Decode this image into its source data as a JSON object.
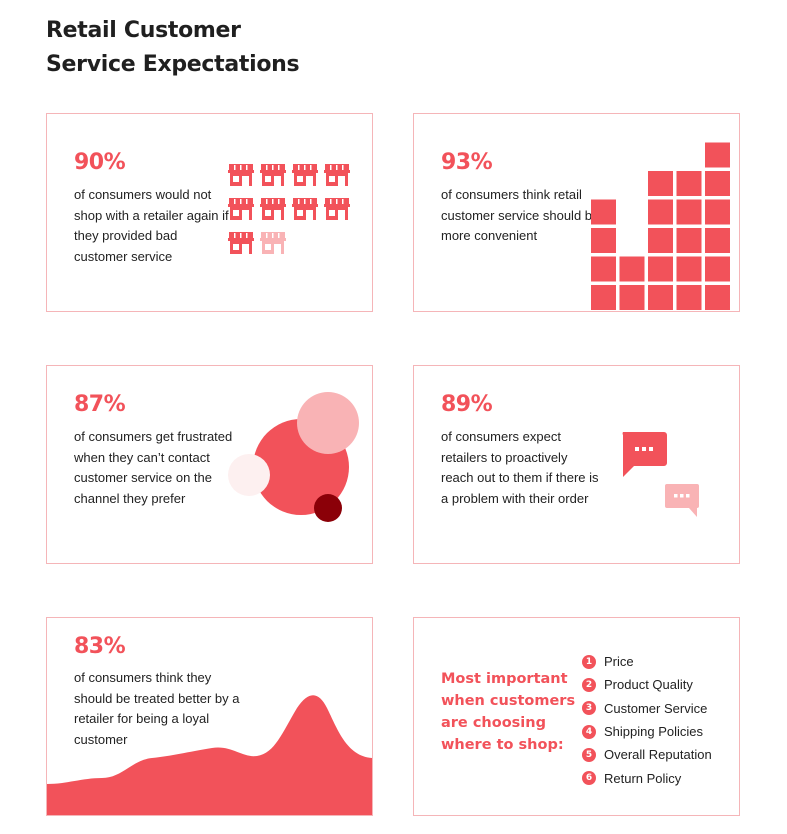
{
  "title_line1": "Retail Customer",
  "title_line2": "Service Expectations",
  "colors": {
    "accent": "#f2525a",
    "light": "#f9b3b5",
    "dark": "#8b0008",
    "pale": "#fdf0f0",
    "border": "#f5b5b8"
  },
  "card1": {
    "percent": "90%",
    "text": "of consumers would not shop with a retailer again if they provided bad customer service",
    "icon": "store-icon",
    "stores_total": 10,
    "stores_highlighted": 9
  },
  "card2": {
    "percent": "93%",
    "text": "of consumers think retail customer service should be more convenient",
    "icon": "bar-blocks-icon"
  },
  "card3": {
    "percent": "87%",
    "text": "of consumers get frustrated when they can’t contact customer service on the channel they prefer",
    "icon": "circles-icon"
  },
  "card4": {
    "percent": "89%",
    "text": "of consumers expect retailers to proactively reach out to them if there is a problem with their order",
    "icon": "chat-bubble-icon"
  },
  "card5": {
    "percent": "83%",
    "text": "of consumers think they should be treated better by a retailer for being a loyal customer",
    "icon": "wave-area-icon"
  },
  "card6": {
    "title": "Most important when customers are choosing where to shop:",
    "items": [
      {
        "n": "1",
        "label": "Price"
      },
      {
        "n": "2",
        "label": "Product Quality"
      },
      {
        "n": "3",
        "label": "Customer Service"
      },
      {
        "n": "4",
        "label": "Shipping Policies"
      },
      {
        "n": "5",
        "label": "Overall Reputation"
      },
      {
        "n": "6",
        "label": "Return Policy"
      }
    ]
  }
}
